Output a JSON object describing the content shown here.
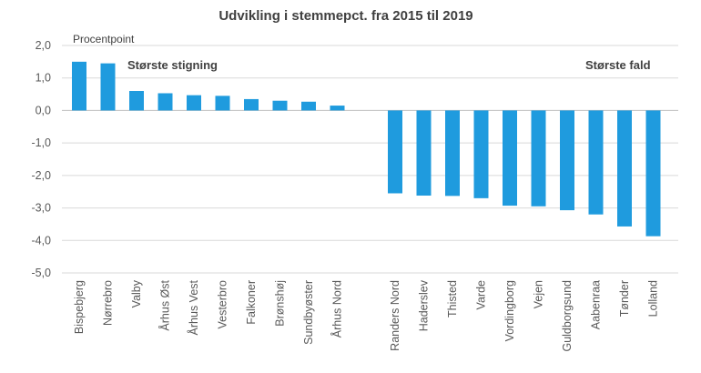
{
  "chart_data": {
    "type": "bar",
    "title": "Udvikling i stemmepct. fra 2015 til 2019",
    "unit_label": "Procentpoint",
    "ylim": [
      -5,
      2
    ],
    "yticks": [
      "2,0",
      "1,0",
      "0,0",
      "-1,0",
      "-2,0",
      "-3,0",
      "-4,0",
      "-5,0"
    ],
    "ytick_values": [
      2,
      1,
      0,
      -1,
      -2,
      -3,
      -4,
      -5
    ],
    "grid": true,
    "color": "#1f9bde",
    "groups": [
      {
        "label": "Største stigning",
        "categories": [
          "Bispebjerg",
          "Nørrebro",
          "Valby",
          "Århus Øst",
          "Århus Vest",
          "Vesterbro",
          "Falkoner",
          "Brønshøj",
          "Sundbyøster",
          "Århus Nord"
        ],
        "values": [
          1.5,
          1.45,
          0.6,
          0.53,
          0.47,
          0.45,
          0.35,
          0.3,
          0.27,
          0.15
        ]
      },
      {
        "label": "Største fald",
        "categories": [
          "Randers Nord",
          "Haderslev",
          "Thisted",
          "Varde",
          "Vordingborg",
          "Vejen",
          "Guldborgsund",
          "Aabenraa",
          "Tønder",
          "Lolland"
        ],
        "values": [
          -2.55,
          -2.62,
          -2.63,
          -2.7,
          -2.93,
          -2.95,
          -3.07,
          -3.2,
          -3.57,
          -3.87
        ]
      }
    ]
  }
}
